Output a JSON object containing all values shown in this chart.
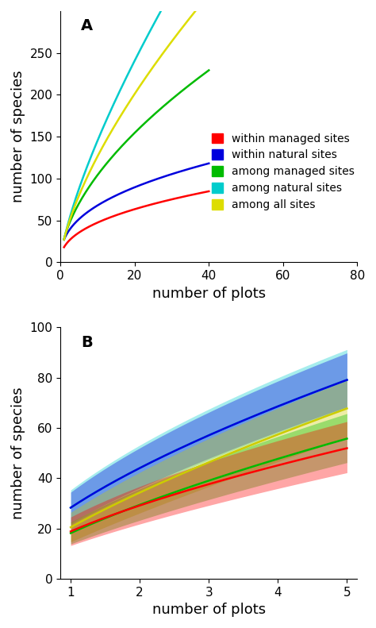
{
  "panel_A": {
    "title": "A",
    "xlabel": "number of plots",
    "ylabel": "number of species",
    "xlim": [
      0,
      80
    ],
    "ylim": [
      0,
      300
    ],
    "xticks": [
      0,
      20,
      40,
      60,
      80
    ],
    "yticks": [
      0,
      50,
      100,
      150,
      200,
      250
    ],
    "curves": [
      {
        "label": "within managed sites",
        "color": "#FF0000",
        "params": {
          "S0": 18,
          "c": 0.07,
          "xmax": 40
        }
      },
      {
        "label": "within natural sites",
        "color": "#0000DD",
        "params": {
          "S0": 27,
          "c": 0.055,
          "xmax": 40
        }
      },
      {
        "label": "among managed sites",
        "color": "#00BB00",
        "params": {
          "S0": 28,
          "c": 0.038,
          "xmax": 40,
          "scale": 5.2
        }
      },
      {
        "label": "among natural sites",
        "color": "#00CCCC",
        "params": {
          "S0": 27,
          "c": 0.048,
          "xmax": 40,
          "scale": 9.8
        }
      },
      {
        "label": "among all sites",
        "color": "#DDDD00",
        "params": {
          "S0": 27,
          "c": 0.032,
          "xmax": 80,
          "scale": 9.5
        }
      }
    ]
  },
  "panel_B": {
    "title": "B",
    "xlabel": "number of plots",
    "ylabel": "number of species",
    "xlim": [
      1,
      5
    ],
    "ylim": [
      0,
      100
    ],
    "xticks": [
      1,
      2,
      3,
      4,
      5
    ],
    "yticks": [
      0,
      20,
      40,
      60,
      80,
      100
    ],
    "curves": [
      {
        "label": "within managed sites",
        "color": "#FF0000",
        "x": [
          1,
          2,
          3,
          4,
          5
        ],
        "y": [
          18.5,
          30,
          38,
          44,
          52
        ],
        "y_lo": [
          13,
          22,
          30,
          35,
          42
        ],
        "y_hi": [
          24,
          38,
          47,
          54,
          62
        ]
      },
      {
        "label": "within natural sites",
        "color": "#0000DD",
        "x": [
          1,
          2,
          3,
          4,
          5
        ],
        "y": [
          28,
          45,
          57,
          67,
          80
        ],
        "y_lo": [
          22,
          37,
          48,
          57,
          69
        ],
        "y_hi": [
          34,
          53,
          67,
          77,
          90
        ]
      },
      {
        "label": "among managed sites",
        "color": "#00BB00",
        "x": [
          1,
          2,
          3,
          4,
          5
        ],
        "y": [
          18,
          30,
          39,
          46,
          57
        ],
        "y_lo": [
          14,
          23,
          31,
          38,
          48
        ],
        "y_hi": [
          22,
          37,
          47,
          55,
          66
        ]
      },
      {
        "label": "among natural sites",
        "color": "#00CCCC",
        "x": [
          1,
          2,
          3,
          4,
          5
        ],
        "y": [
          28,
          45,
          57,
          67,
          80
        ],
        "y_lo": [
          21,
          37,
          47,
          57,
          68
        ],
        "y_hi": [
          35,
          54,
          68,
          78,
          92
        ]
      },
      {
        "label": "among all sites",
        "color": "#CCCC00",
        "x": [
          1,
          2,
          3,
          4,
          5
        ],
        "y": [
          21,
          34,
          44,
          55,
          73
        ],
        "y_lo": [
          15,
          26,
          35,
          44,
          61
        ],
        "y_hi": [
          27,
          42,
          53,
          66,
          84
        ]
      }
    ]
  },
  "bg_color": "#FFFFFF",
  "tick_fontsize": 11,
  "label_fontsize": 13,
  "title_fontsize": 14,
  "legend_fontsize": 10,
  "linewidth": 1.8
}
